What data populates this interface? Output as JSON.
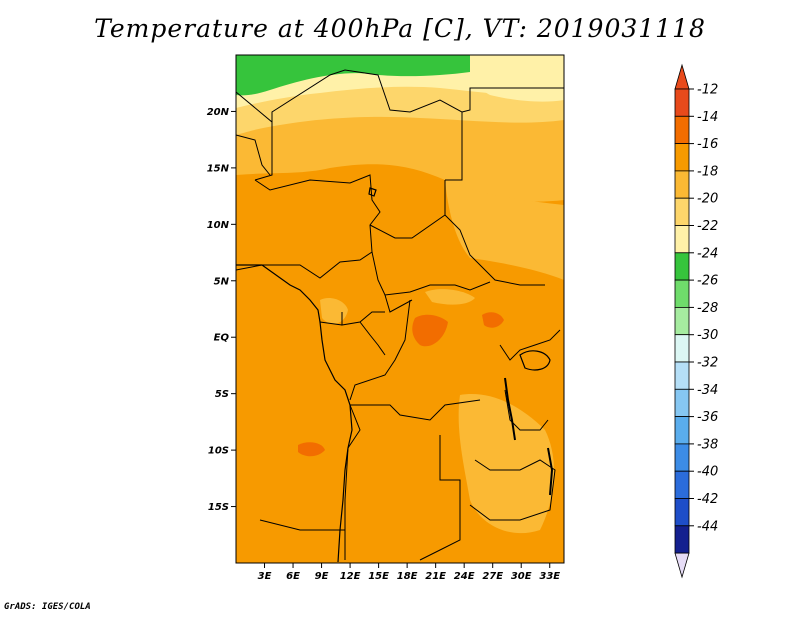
{
  "title": "Temperature at 400hPa [C], VT: 2019031118",
  "credit": "GrADS: IGES/COLA",
  "map": {
    "lon_range": [
      0,
      34.5
    ],
    "lat_range": [
      -20,
      25
    ],
    "lat_ticks": [
      {
        "value": 20,
        "label": "20N"
      },
      {
        "value": 15,
        "label": "15N"
      },
      {
        "value": 10,
        "label": "10N"
      },
      {
        "value": 5,
        "label": "5N"
      },
      {
        "value": 0,
        "label": "EQ"
      },
      {
        "value": -5,
        "label": "5S"
      },
      {
        "value": -10,
        "label": "10S"
      },
      {
        "value": -15,
        "label": "15S"
      }
    ],
    "lon_ticks": [
      {
        "value": 3,
        "label": "3E"
      },
      {
        "value": 6,
        "label": "6E"
      },
      {
        "value": 9,
        "label": "9E"
      },
      {
        "value": 12,
        "label": "12E"
      },
      {
        "value": 15,
        "label": "15E"
      },
      {
        "value": 18,
        "label": "18E"
      },
      {
        "value": 21,
        "label": "21E"
      },
      {
        "value": 24,
        "label": "24E"
      },
      {
        "value": 27,
        "label": "27E"
      },
      {
        "value": 30,
        "label": "30E"
      },
      {
        "value": 33,
        "label": "33E"
      }
    ]
  },
  "colorbar": {
    "labels": [
      "-12",
      "-14",
      "-16",
      "-18",
      "-20",
      "-22",
      "-24",
      "-26",
      "-28",
      "-30",
      "-32",
      "-34",
      "-36",
      "-38",
      "-40",
      "-42",
      "-44"
    ],
    "colors": [
      "#e84a1b",
      "#f26d00",
      "#f79a00",
      "#fbb934",
      "#fdd66b",
      "#fff1a8",
      "#36c43c",
      "#6fdc6b",
      "#a6eca0",
      "#dcf7f4",
      "#b5dff7",
      "#86c7f2",
      "#5aaded",
      "#3c8ce6",
      "#2b6cdb",
      "#1e4ec9",
      "#14208f"
    ],
    "top_arrow_color": "#e84a1b",
    "bottom_arrow_color": "#e7ddf7"
  }
}
